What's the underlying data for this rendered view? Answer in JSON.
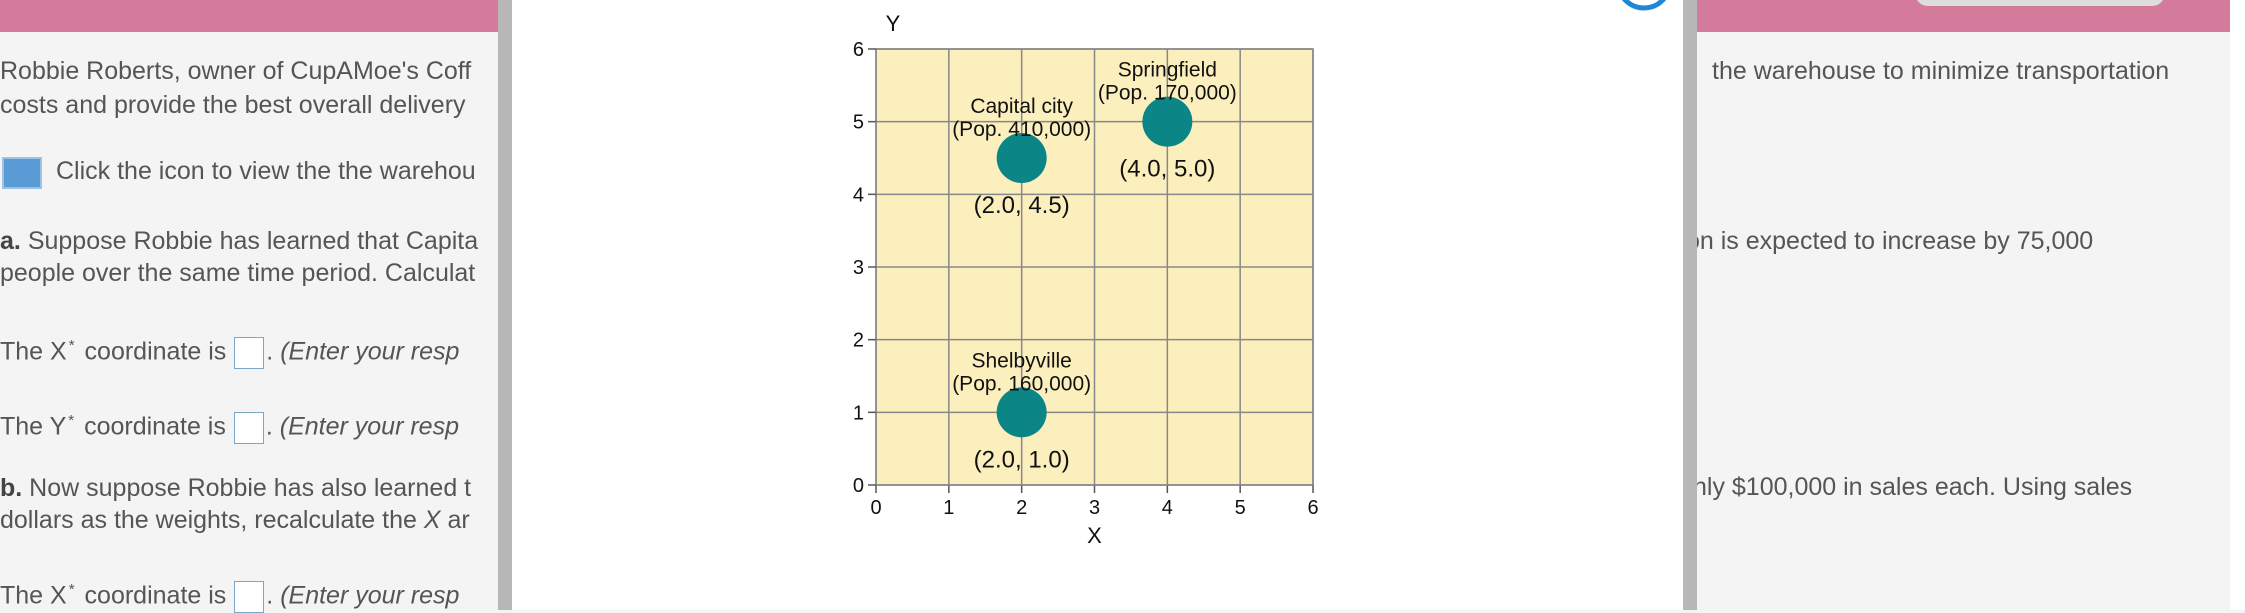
{
  "left_text": {
    "intro": [
      "Robbie Roberts, owner of CupAMoe's Coff",
      "costs and provide the best overall delivery"
    ],
    "icon_text": "Click the icon to view the the warehou",
    "part_a": {
      "label": "a.",
      "lines": [
        "Suppose Robbie has learned that Capita",
        "people over the same time period. Calculat"
      ]
    },
    "answers_a": [
      {
        "prefix": "The X",
        "sup": "*",
        "middle": "coordinate is",
        "dot": ".",
        "hint": "(Enter your resp"
      },
      {
        "prefix": "The Y",
        "sup": "*",
        "middle": "coordinate is",
        "dot": ".",
        "hint": "(Enter your resp"
      }
    ],
    "part_b": {
      "label": "b.",
      "lines": [
        "Now suppose Robbie has also learned t",
        "dollars as the weights, recalculate the "
      ],
      "italic": "X",
      "after": " ar"
    },
    "answers_b": [
      {
        "prefix": "The X",
        "sup": "*",
        "middle": "coordinate is",
        "dot": ".",
        "hint": "(Enter your resp"
      }
    ]
  },
  "right_text": [
    "the warehouse to minimize transportation",
    "on is expected to increase by 75,000",
    "nly $100,000 in sales each. Using sales"
  ],
  "chart_data": {
    "type": "scatter",
    "x_label": "X",
    "y_label": "Y",
    "xlim": [
      0,
      6
    ],
    "ylim": [
      0,
      6
    ],
    "xticks": [
      0,
      1,
      2,
      3,
      4,
      5,
      6
    ],
    "yticks": [
      0,
      1,
      2,
      3,
      4,
      5,
      6
    ],
    "grid": true,
    "color": "#0b8585",
    "points": [
      {
        "name": "Capital city",
        "population": "(Pop. 410,000)",
        "x": 2,
        "y": 4.5,
        "coord_label": "(2.0, 4.5)"
      },
      {
        "name": "Springfield",
        "population": "(Pop. 170,000)",
        "x": 4,
        "y": 5,
        "coord_label": "(4.0, 5.0)"
      },
      {
        "name": "Shelbyville",
        "population": "(Pop. 160,000)",
        "x": 2,
        "y": 1,
        "coord_label": "(2.0, 1.0)"
      }
    ]
  }
}
